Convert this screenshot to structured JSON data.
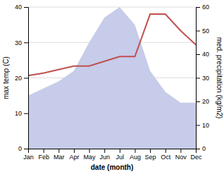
{
  "chart_data": {
    "type": "line",
    "categories": [
      "Jan",
      "Feb",
      "Mar",
      "Apr",
      "May",
      "Jun",
      "Jul",
      "Aug",
      "Sep",
      "Oct",
      "Nov",
      "Dec"
    ],
    "series": [
      {
        "type": "area",
        "color": "#c6cce9",
        "values": [
          15,
          17,
          19,
          22,
          30,
          37,
          40,
          35,
          22,
          16,
          13,
          13
        ]
      },
      {
        "type": "line",
        "color": "#c0504d",
        "axis": "y2",
        "values": [
          31,
          32,
          33.5,
          35,
          35,
          37,
          39,
          39,
          57,
          57,
          50,
          44
        ]
      }
    ],
    "xlabel": "date (month)",
    "ylabel": "max temp (C)",
    "y2label": "med. precipitation (kg/m2)",
    "ylim": [
      0,
      40
    ],
    "yticks": [
      0,
      10,
      20,
      30,
      40
    ],
    "y2lim": [
      0,
      60
    ],
    "y2ticks": [
      0,
      10,
      20,
      30,
      40,
      50,
      60
    ],
    "grid": true
  }
}
